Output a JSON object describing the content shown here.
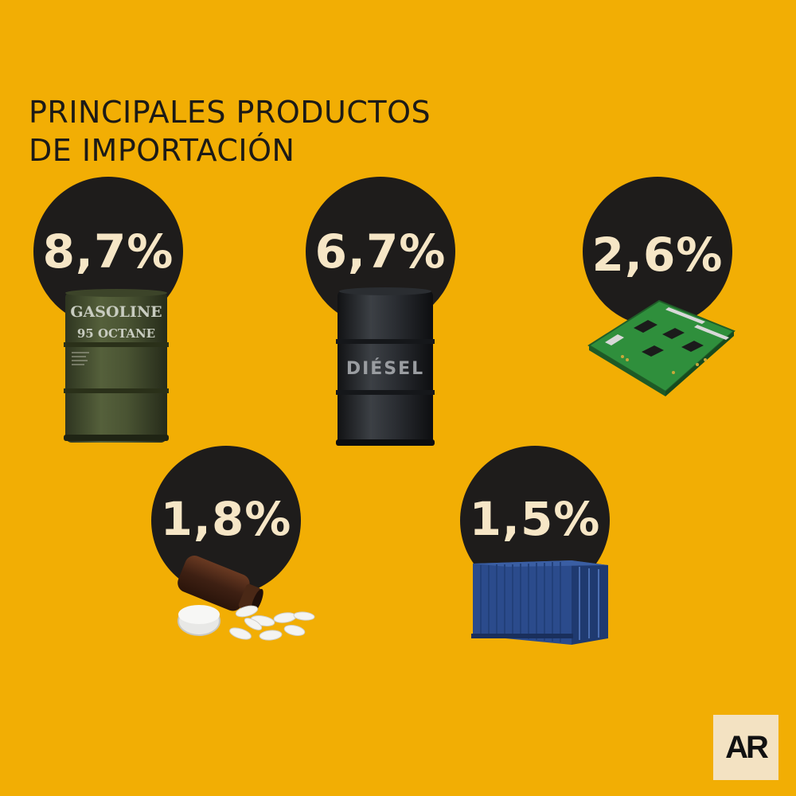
{
  "title": {
    "line1": "PRINCIPALES PRODUCTOS",
    "line2": "DE IMPORTACIÓN"
  },
  "products": [
    {
      "percent": "8,7%",
      "icon": "gasoline-barrel-icon",
      "barrel_label_1": "GASOLINE",
      "barrel_label_2": "95 OCTANE"
    },
    {
      "percent": "6,7%",
      "icon": "diesel-barrel-icon",
      "barrel_label": "DIÉSEL"
    },
    {
      "percent": "2,6%",
      "icon": "circuit-board-icon"
    },
    {
      "percent": "1,8%",
      "icon": "medicine-bottle-pills-icon"
    },
    {
      "percent": "1,5%",
      "icon": "shipping-container-icon"
    }
  ],
  "logo": {
    "text": "AR"
  },
  "colors": {
    "background": "#F2AE04",
    "circle": "#1e1c1b",
    "percent_text": "#f6e6c6"
  }
}
